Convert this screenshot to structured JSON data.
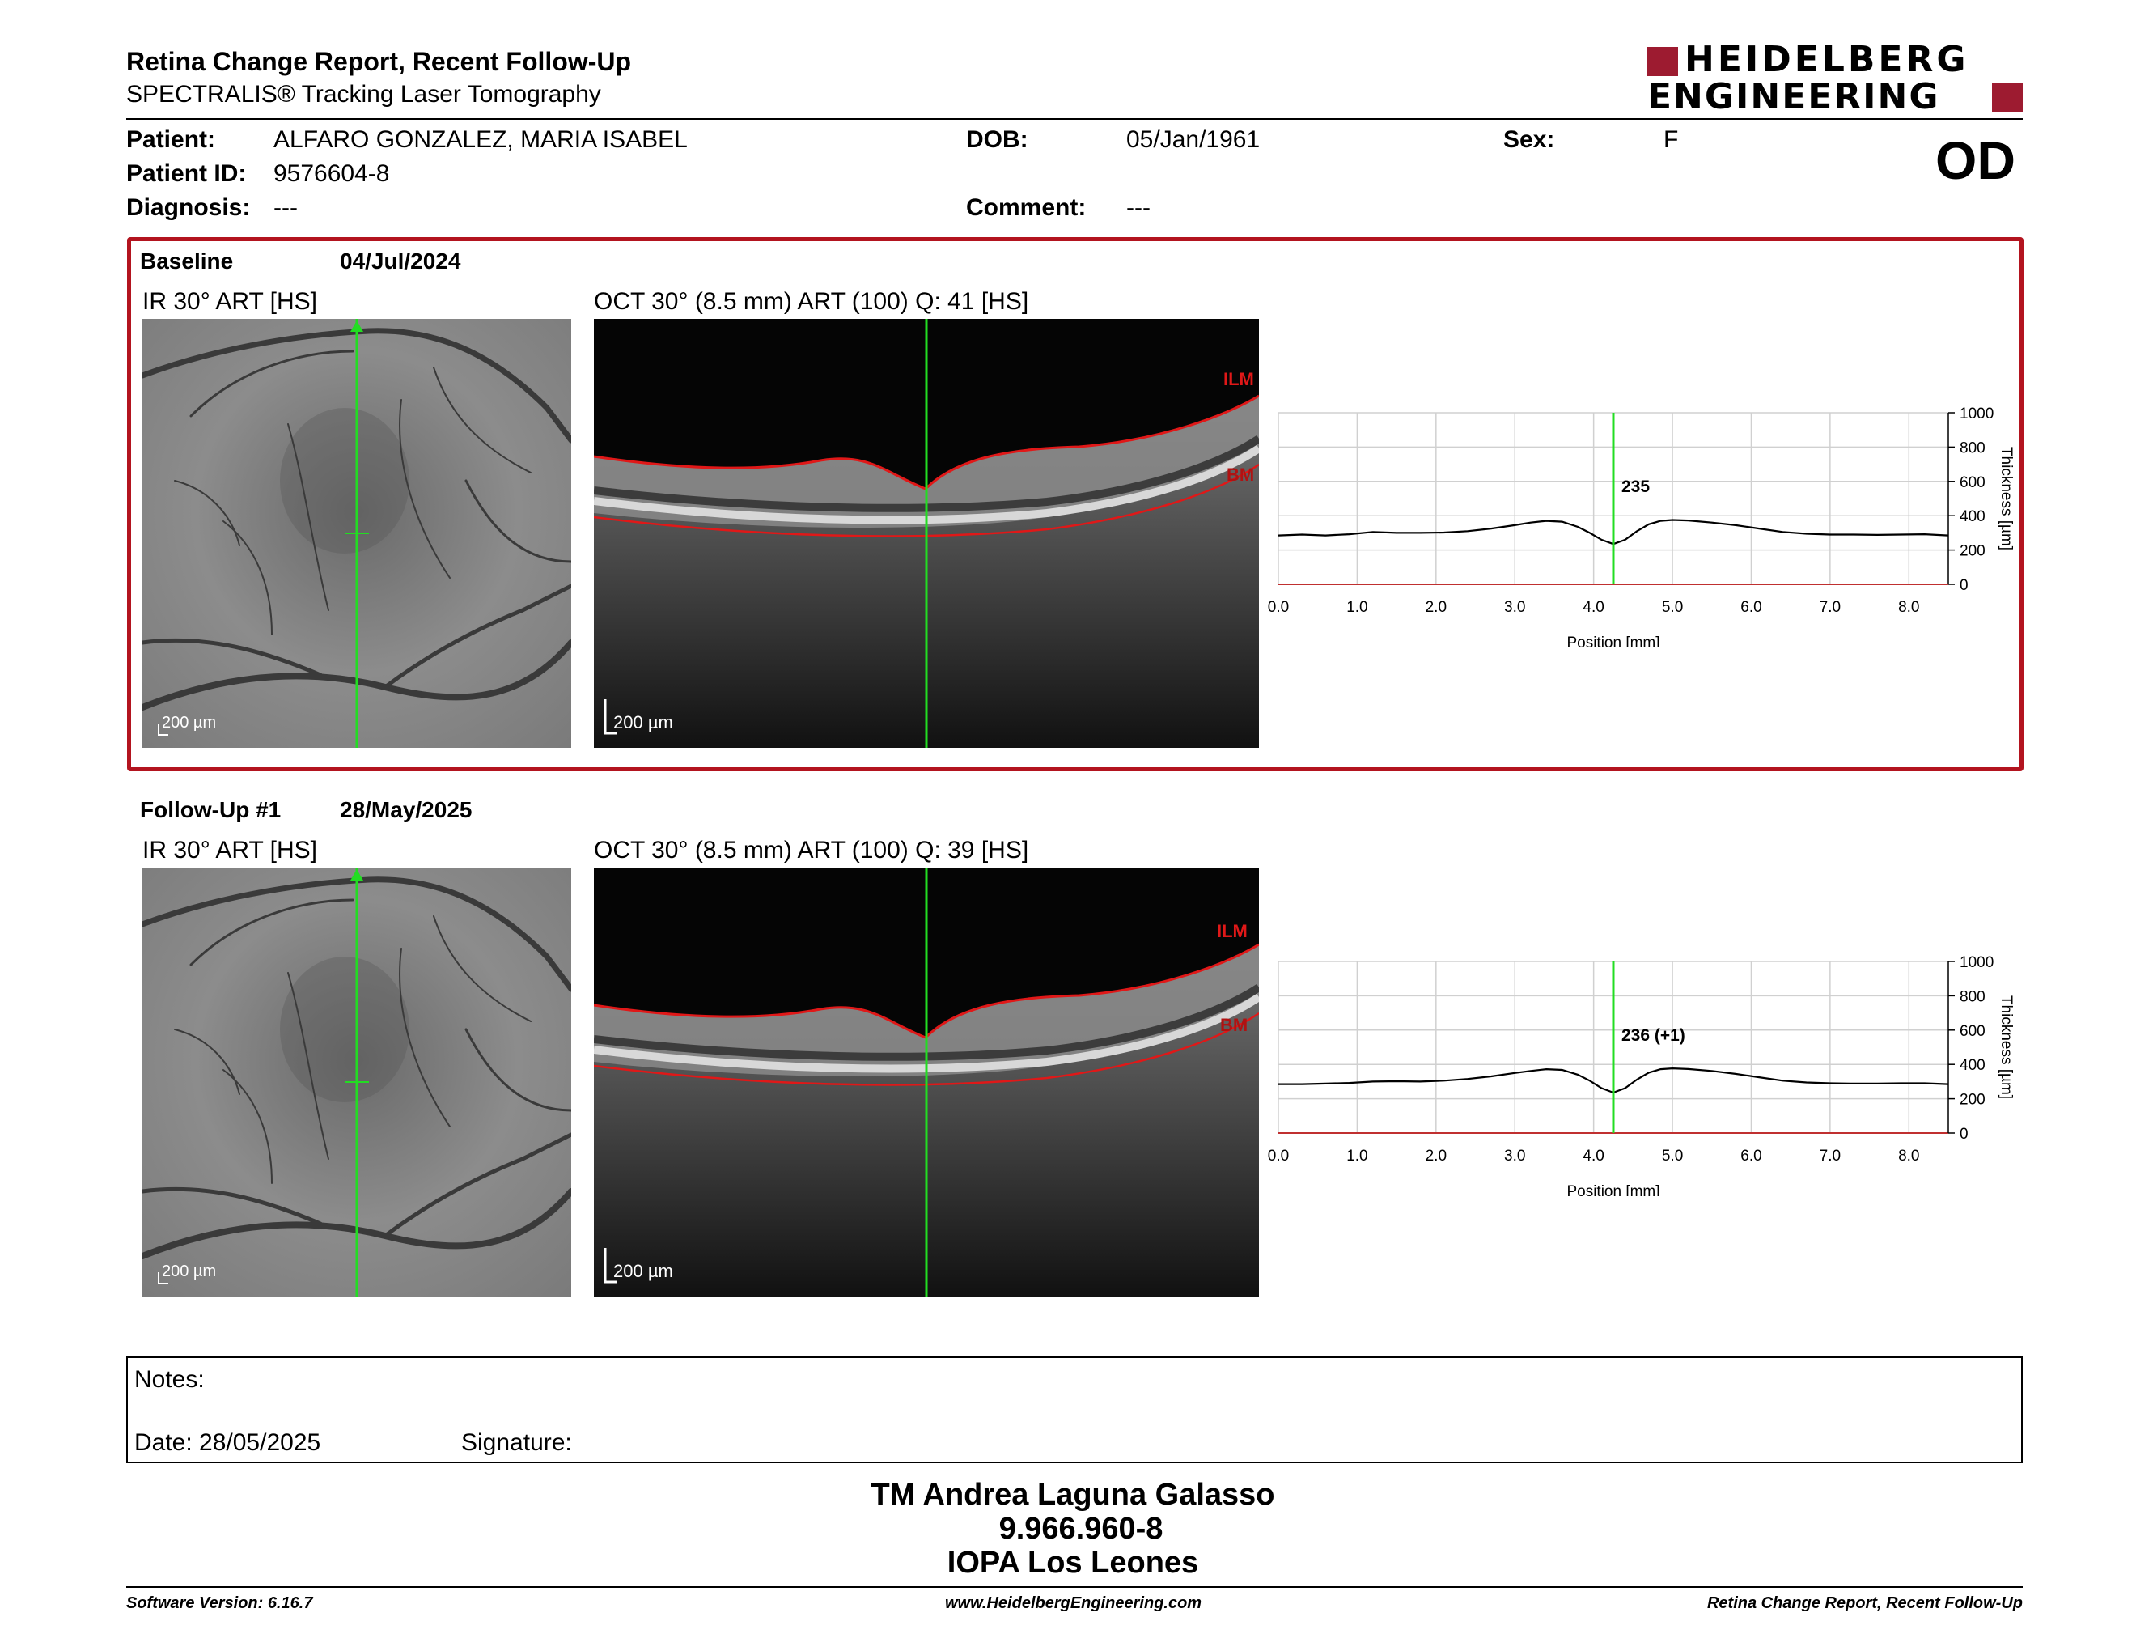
{
  "header": {
    "title": "Retina Change Report, Recent Follow-Up",
    "subtitle": "SPECTRALIS® Tracking Laser Tomography",
    "logo_line1": "HEIDELBERG",
    "logo_line2": "ENGINEERING",
    "eye": "OD"
  },
  "patient": {
    "patient_label": "Patient:",
    "patient_value": "ALFARO GONZALEZ, MARIA ISABEL",
    "dob_label": "DOB:",
    "dob_value": "05/Jan/1961",
    "sex_label": "Sex:",
    "sex_value": "F",
    "id_label": "Patient ID:",
    "id_value": "9576604-8",
    "diagnosis_label": "Diagnosis:",
    "diagnosis_value": "---",
    "comment_label": "Comment:",
    "comment_value": "---"
  },
  "baseline": {
    "label": "Baseline",
    "date": "04/Jul/2024",
    "ir_label": "IR 30° ART [HS]",
    "oct_label": "OCT 30° (8.5 mm) ART (100) Q: 41 [HS]",
    "scale": "200 µm",
    "ilm": "ILM",
    "bm": "BM",
    "marker_value": "235"
  },
  "followup": {
    "label": "Follow-Up #1",
    "date": "28/May/2025",
    "ir_label": "IR 30° ART [HS]",
    "oct_label": "OCT 30° (8.5 mm) ART (100) Q: 39 [HS]",
    "scale": "200 µm",
    "ilm": "ILM",
    "bm": "BM",
    "marker_value": "236 (+1)"
  },
  "chart_data": [
    {
      "type": "line",
      "xlabel": "Position [mm]",
      "ylabel": "Thickness [µm]",
      "xlim": [
        0,
        8.5
      ],
      "ylim": [
        0,
        1000
      ],
      "xticks": [
        "0.0",
        "1.0",
        "2.0",
        "3.0",
        "4.0",
        "5.0",
        "6.0",
        "7.0",
        "8.0"
      ],
      "yticks": [
        "0",
        "200",
        "400",
        "600",
        "800",
        "1000"
      ],
      "grid": true,
      "marker_x": 4.25,
      "marker_label": "235",
      "series": [
        {
          "x": [
            0,
            0.3,
            0.6,
            0.9,
            1.2,
            1.5,
            1.8,
            2.1,
            2.4,
            2.7,
            3.0,
            3.2,
            3.4,
            3.6,
            3.8,
            3.95,
            4.1,
            4.25,
            4.4,
            4.55,
            4.7,
            4.85,
            5.0,
            5.2,
            5.5,
            5.8,
            6.1,
            6.4,
            6.7,
            7.0,
            7.3,
            7.6,
            7.9,
            8.2,
            8.5
          ],
          "y": [
            285,
            290,
            285,
            292,
            305,
            300,
            300,
            302,
            310,
            325,
            345,
            360,
            370,
            365,
            335,
            300,
            260,
            235,
            260,
            310,
            350,
            370,
            375,
            372,
            360,
            345,
            325,
            305,
            295,
            290,
            290,
            288,
            290,
            292,
            285
          ]
        }
      ]
    },
    {
      "type": "line",
      "xlabel": "Position [mm]",
      "ylabel": "Thickness [µm]",
      "xlim": [
        0,
        8.5
      ],
      "ylim": [
        0,
        1000
      ],
      "xticks": [
        "0.0",
        "1.0",
        "2.0",
        "3.0",
        "4.0",
        "5.0",
        "6.0",
        "7.0",
        "8.0"
      ],
      "yticks": [
        "0",
        "200",
        "400",
        "600",
        "800",
        "1000"
      ],
      "grid": true,
      "marker_x": 4.25,
      "marker_label": "236 (+1)",
      "series": [
        {
          "x": [
            0,
            0.3,
            0.6,
            0.9,
            1.2,
            1.5,
            1.8,
            2.1,
            2.4,
            2.7,
            3.0,
            3.2,
            3.4,
            3.6,
            3.8,
            3.95,
            4.1,
            4.25,
            4.4,
            4.55,
            4.7,
            4.85,
            5.0,
            5.2,
            5.5,
            5.8,
            6.1,
            6.4,
            6.7,
            7.0,
            7.3,
            7.6,
            7.9,
            8.2,
            8.5
          ],
          "y": [
            285,
            285,
            288,
            292,
            300,
            302,
            300,
            305,
            315,
            330,
            350,
            362,
            372,
            368,
            340,
            305,
            262,
            236,
            262,
            312,
            352,
            372,
            377,
            373,
            362,
            345,
            325,
            305,
            295,
            290,
            288,
            288,
            290,
            290,
            285
          ]
        }
      ]
    }
  ],
  "notes": {
    "notes_label": "Notes:",
    "date_label": "Date: 28/05/2025",
    "signature_label": "Signature:"
  },
  "signer": {
    "name": "TM Andrea Laguna Galasso",
    "id": "9.966.960-8",
    "org": "IOPA Los Leones"
  },
  "footer": {
    "software": "Software Version: 6.16.7",
    "website": "www.HeidelbergEngineering.com",
    "report": "Retina Change Report, Recent Follow-Up"
  },
  "colors": {
    "accent_red": "#b3141f",
    "green_line": "#22dd22",
    "layer_red": "#e01818"
  }
}
